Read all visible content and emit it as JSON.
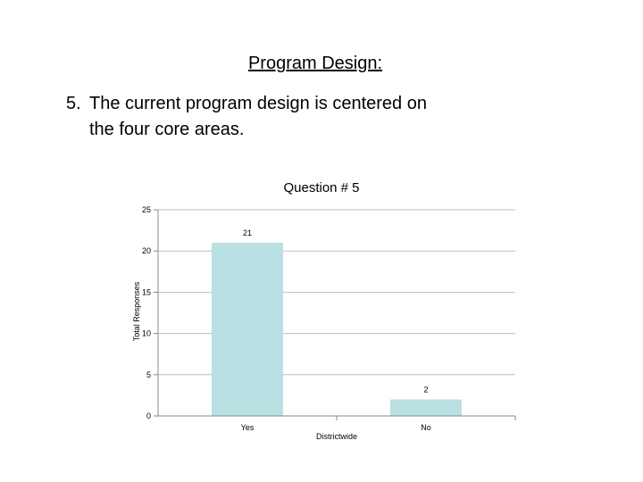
{
  "slide": {
    "heading": "Program Design:",
    "question_number": "5.",
    "question_line1": "The current program design is centered on",
    "question_line2": "the four core areas."
  },
  "chart_data": {
    "type": "bar",
    "title": "Question # 5",
    "ylabel": "Total Responses",
    "xlabel": "Districtwide",
    "categories": [
      "Yes",
      "No"
    ],
    "values": [
      21,
      2
    ],
    "ylim": [
      0,
      25
    ],
    "yticks": [
      0,
      5,
      10,
      15,
      20,
      25
    ],
    "grid": true,
    "legend": "none",
    "bar_color": "#b9e0e3"
  }
}
